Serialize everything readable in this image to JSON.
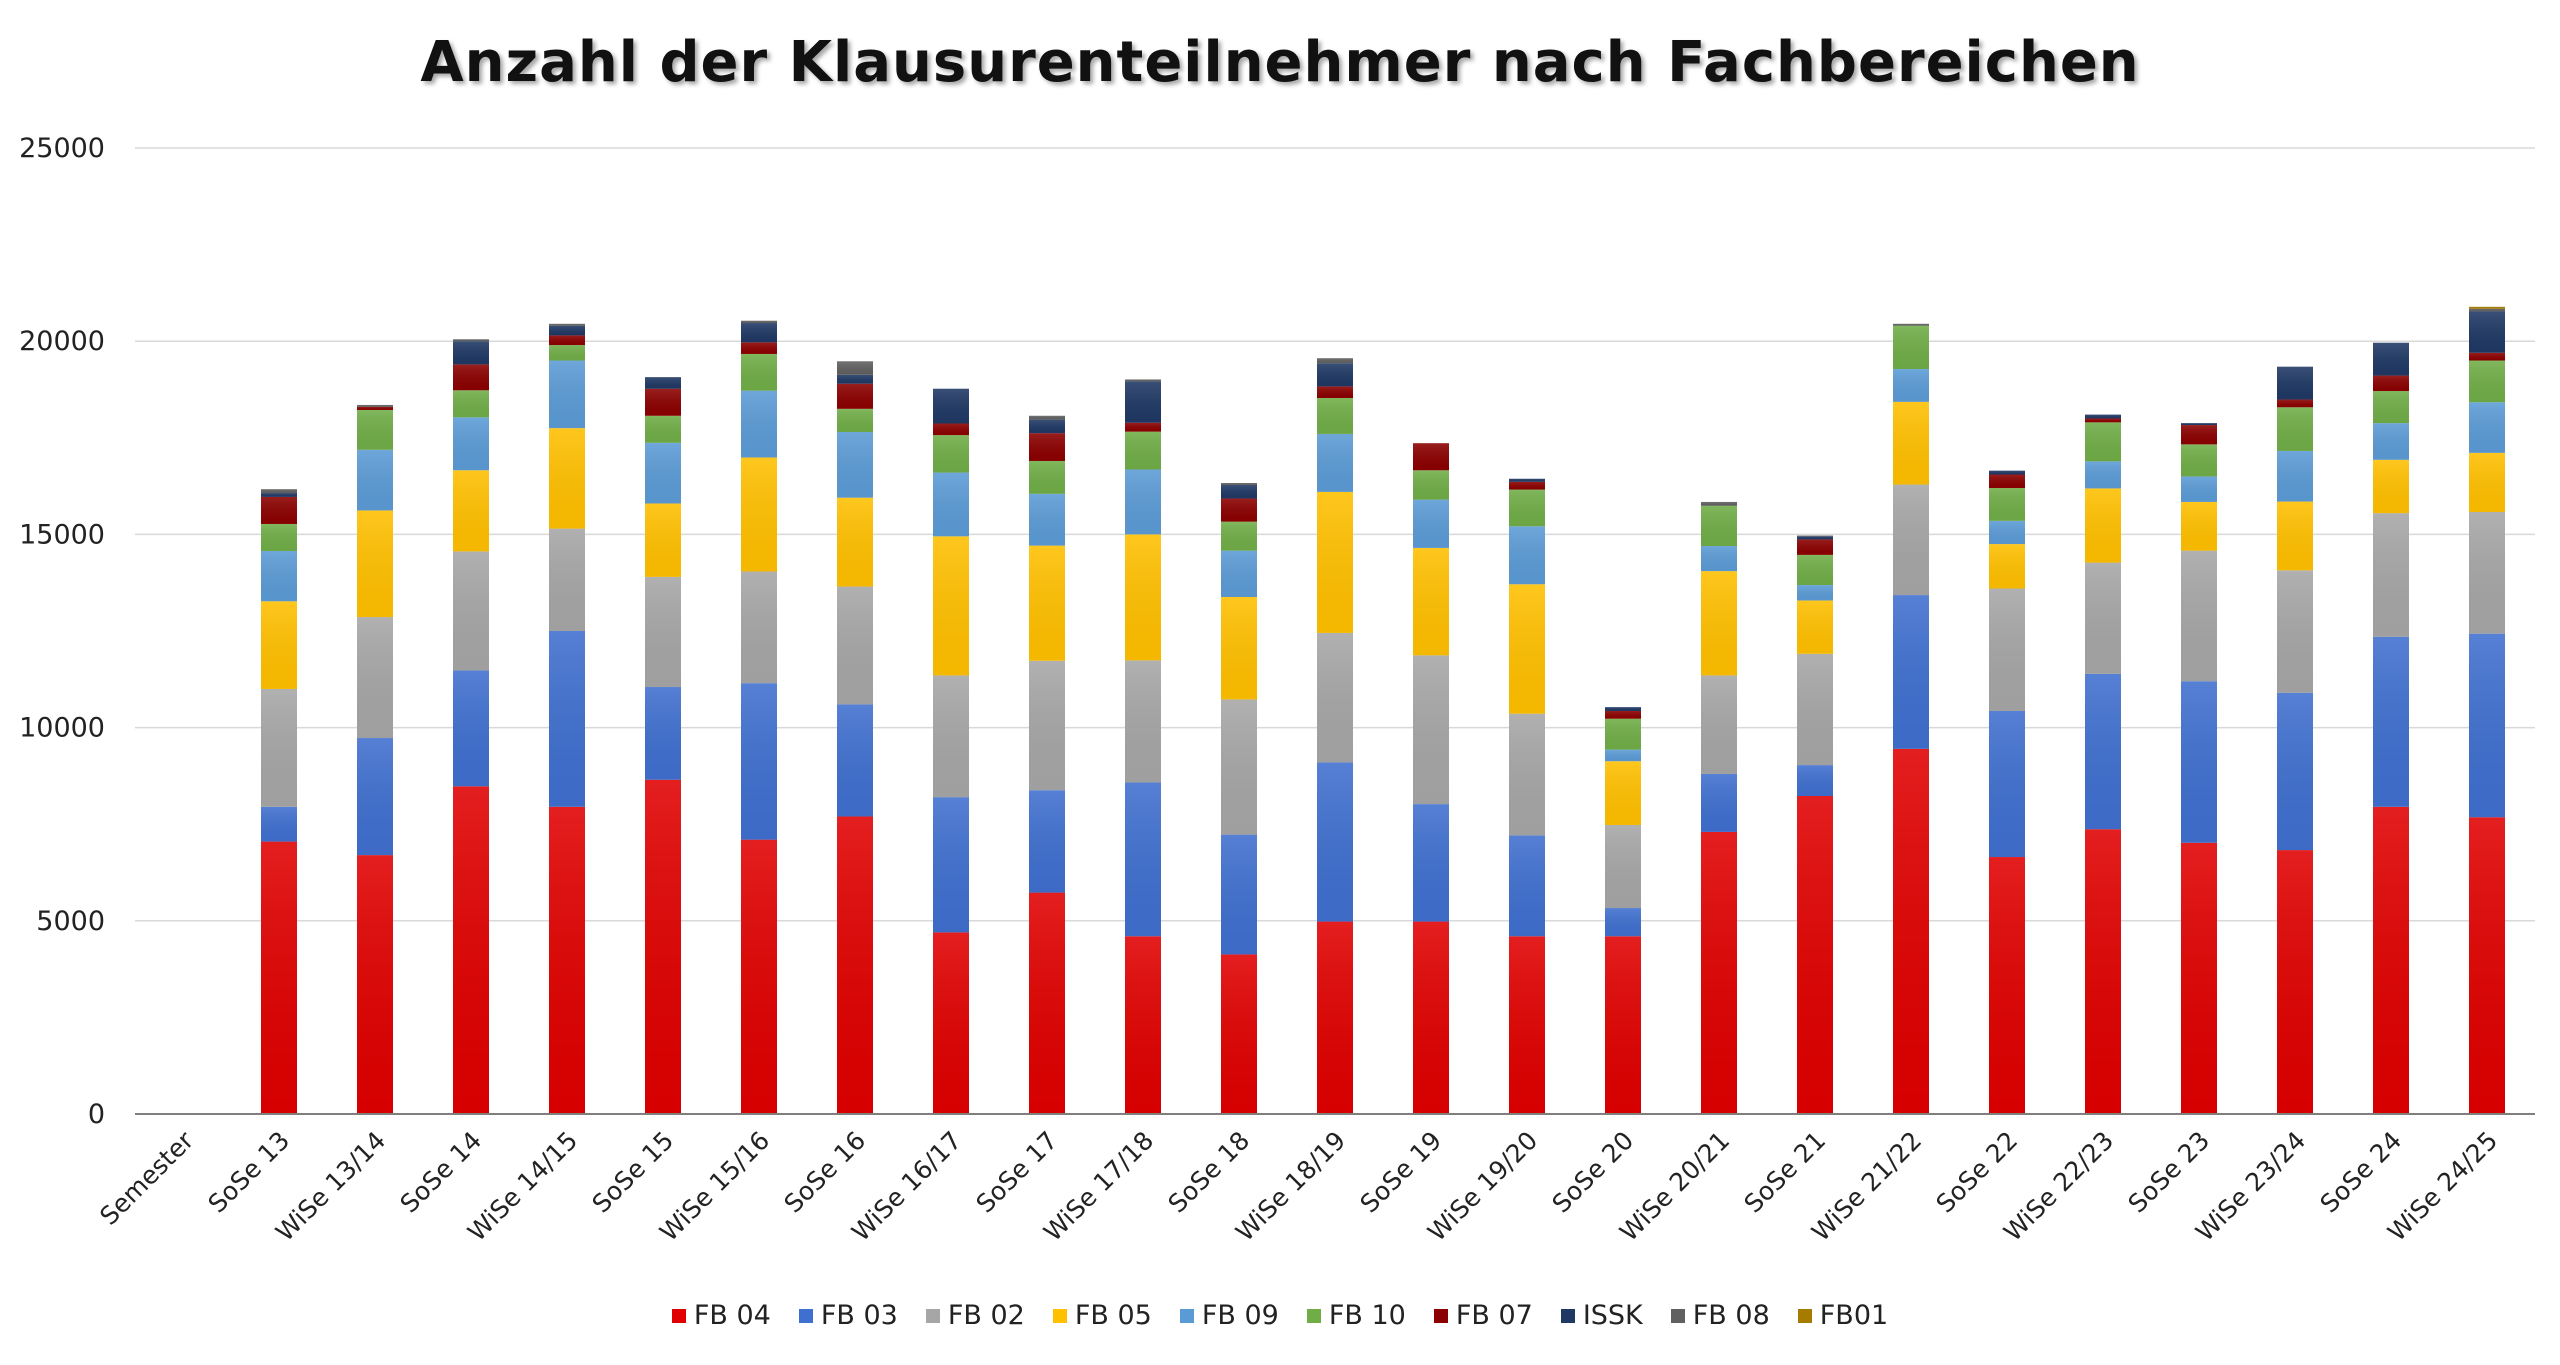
{
  "chart_data": {
    "type": "bar",
    "stacked": true,
    "title": "Anzahl der Klausurenteilnehmer nach Fachbereichen",
    "xlabel": "",
    "ylabel": "",
    "ylim": [
      0,
      25000
    ],
    "yticks": [
      0,
      5000,
      10000,
      15000,
      20000,
      25000
    ],
    "grid": true,
    "legend_position": "bottom",
    "categories": [
      "Semester",
      "SoSe 13",
      "WiSe 13/14",
      "SoSe 14",
      "WiSe 14/15",
      "SoSe 15",
      "WiSe 15/16",
      "SoSe 16",
      "WiSe 16/17",
      "SoSe 17",
      "WiSe 17/18",
      "SoSe 18",
      "WiSe 18/19",
      "SoSe 19",
      "WiSe 19/20",
      "SoSe 20",
      "WiSe 20/21",
      "SoSe 21",
      "WiSe 21/22",
      "SoSe 22",
      "WiSe 22/23",
      "SoSe 23",
      "WiSe 23/24",
      "SoSe 24",
      "WiSe 24/25"
    ],
    "series": [
      {
        "name": "FB 04",
        "color": "#e00000",
        "values": [
          0,
          7050,
          6700,
          8480,
          7950,
          8650,
          7100,
          7700,
          4700,
          5730,
          4600,
          4130,
          4980,
          4980,
          4600,
          4600,
          7300,
          8230,
          9450,
          6650,
          7370,
          7020,
          6830,
          7950,
          7680
        ]
      },
      {
        "name": "FB 03",
        "color": "#3f6fcf",
        "values": [
          0,
          900,
          3030,
          3000,
          4550,
          2400,
          4050,
          2900,
          3500,
          2650,
          3980,
          3100,
          4120,
          3040,
          2610,
          730,
          1500,
          800,
          3980,
          3780,
          4020,
          4180,
          4070,
          4400,
          4750
        ]
      },
      {
        "name": "FB 02",
        "color": "#a6a6a6",
        "values": [
          0,
          3050,
          3130,
          3080,
          2650,
          2850,
          2890,
          3050,
          3150,
          3350,
          3160,
          3500,
          3350,
          3850,
          3150,
          2150,
          2550,
          2880,
          2860,
          3170,
          2880,
          3380,
          3170,
          3200,
          3150
        ]
      },
      {
        "name": "FB 05",
        "color": "#ffc000",
        "values": [
          0,
          2270,
          2760,
          2100,
          2600,
          1900,
          2950,
          2300,
          3600,
          2980,
          3260,
          2650,
          3650,
          2780,
          3350,
          1650,
          2700,
          1380,
          2140,
          1150,
          1920,
          1260,
          1780,
          1380,
          1530
        ]
      },
      {
        "name": "FB 09",
        "color": "#5b9bd5",
        "values": [
          0,
          1300,
          1570,
          1370,
          1750,
          1570,
          1730,
          1700,
          1650,
          1340,
          1680,
          1200,
          1500,
          1250,
          1500,
          300,
          650,
          400,
          850,
          600,
          700,
          660,
          1310,
          950,
          1310
        ]
      },
      {
        "name": "FB 10",
        "color": "#70ad47",
        "values": [
          0,
          700,
          1030,
          700,
          400,
          700,
          950,
          600,
          970,
          850,
          980,
          750,
          930,
          760,
          950,
          800,
          1040,
          780,
          1120,
          850,
          1010,
          830,
          1130,
          830,
          1080
        ]
      },
      {
        "name": "FB 07",
        "color": "#8b0000",
        "values": [
          0,
          700,
          80,
          670,
          250,
          700,
          300,
          650,
          300,
          720,
          230,
          600,
          300,
          700,
          200,
          200,
          0,
          400,
          0,
          350,
          100,
          500,
          200,
          400,
          200
        ]
      },
      {
        "name": "ISSK",
        "color": "#1f3864",
        "values": [
          0,
          100,
          0,
          600,
          250,
          300,
          500,
          230,
          900,
          350,
          1070,
          350,
          600,
          0,
          80,
          100,
          0,
          80,
          0,
          100,
          100,
          50,
          850,
          850,
          1070
        ]
      },
      {
        "name": "FB 08",
        "color": "#606060",
        "values": [
          0,
          100,
          50,
          50,
          50,
          0,
          60,
          350,
          0,
          100,
          50,
          50,
          130,
          0,
          0,
          0,
          100,
          20,
          50,
          0,
          0,
          0,
          0,
          0,
          70
        ]
      },
      {
        "name": "FB01",
        "color": "#a57c00",
        "values": [
          0,
          0,
          0,
          0,
          0,
          0,
          0,
          0,
          0,
          0,
          0,
          0,
          0,
          0,
          0,
          0,
          0,
          0,
          0,
          0,
          0,
          0,
          0,
          0,
          50
        ]
      }
    ]
  }
}
